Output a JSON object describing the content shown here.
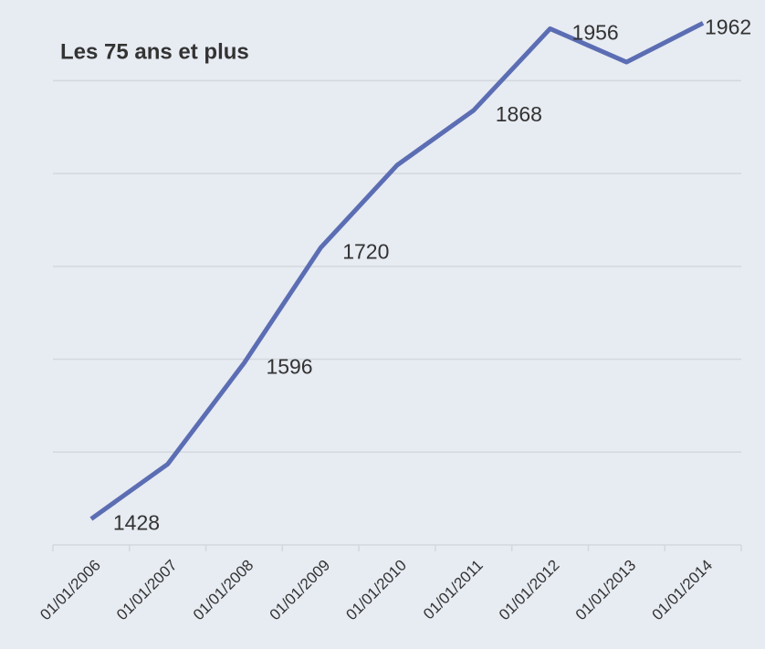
{
  "chart_data": {
    "type": "line",
    "title": "Les 75 ans et plus",
    "categories": [
      "01/01/2006",
      "01/01/2007",
      "01/01/2008",
      "01/01/2009",
      "01/01/2010",
      "01/01/2011",
      "01/01/2012",
      "01/01/2013",
      "01/01/2014"
    ],
    "series": [
      {
        "color": "#5b6db3",
        "values": [
          1428,
          1487,
          1596,
          1720,
          1809,
          1868,
          1956,
          1920,
          1962
        ],
        "value_labels": [
          "1428",
          null,
          "1596",
          "1720",
          null,
          "1868",
          "1956",
          null,
          "1962"
        ]
      }
    ],
    "ylim": [
      1400,
      1980
    ],
    "yticks": [
      1400,
      1500,
      1600,
      1700,
      1800,
      1900
    ],
    "grid": true
  }
}
